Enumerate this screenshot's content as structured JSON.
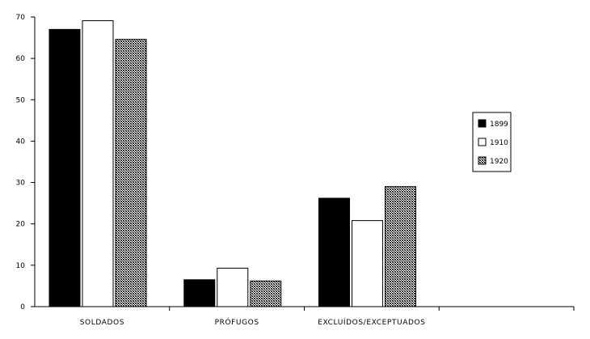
{
  "chart_data": {
    "type": "bar",
    "categories": [
      "SOLDADOS",
      "PRÓFUGOS",
      "EXCLUÍDOS/EXCEPTUADOS"
    ],
    "series": [
      {
        "name": "1899",
        "values": [
          67,
          6.5,
          26.2
        ],
        "fill": "#000000"
      },
      {
        "name": "1910",
        "values": [
          69.1,
          9.3,
          20.8
        ],
        "fill": "#ffffff"
      },
      {
        "name": "1920",
        "values": [
          64.6,
          6.2,
          29
        ]
      }
    ],
    "ylim": [
      0,
      70
    ],
    "yticks": [
      "0",
      "10",
      "20",
      "30",
      "40",
      "50",
      "60",
      "70"
    ],
    "legend_position": "right",
    "grid": false,
    "title": "",
    "xlabel": "",
    "ylabel": ""
  }
}
